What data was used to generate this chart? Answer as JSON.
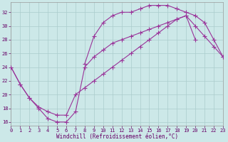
{
  "xlabel": "Windchill (Refroidissement éolien,°C)",
  "background_color": "#cce8e8",
  "grid_color": "#aacccc",
  "line_color": "#993399",
  "tick_color": "#660066",
  "xlim": [
    0,
    23
  ],
  "ylim": [
    15.5,
    33.5
  ],
  "yticks": [
    16,
    18,
    20,
    22,
    24,
    26,
    28,
    30,
    32
  ],
  "xticks": [
    0,
    1,
    2,
    3,
    4,
    5,
    6,
    7,
    8,
    9,
    10,
    11,
    12,
    13,
    14,
    15,
    16,
    17,
    18,
    19,
    20,
    21,
    22,
    23
  ],
  "series": [
    {
      "x": [
        8,
        9,
        10,
        11,
        12,
        13,
        14,
        15,
        16,
        17,
        18,
        19,
        20,
        21,
        22,
        23
      ],
      "y": [
        24.5,
        28.5,
        30.5,
        31.5,
        32.0,
        32.0,
        32.5,
        33.0,
        33.0,
        33.0,
        32.5,
        32.0,
        31.5,
        30.5,
        28.0,
        25.5
      ]
    },
    {
      "x": [
        0,
        1,
        2,
        3,
        4,
        5,
        6,
        7,
        8,
        9,
        10,
        11,
        12,
        13,
        14,
        15,
        16,
        17,
        18,
        19,
        20,
        21,
        22,
        23
      ],
      "y": [
        24.0,
        21.5,
        19.5,
        18.2,
        17.5,
        17.0,
        17.0,
        20.0,
        21.0,
        22.0,
        23.0,
        24.0,
        25.0,
        26.0,
        27.0,
        28.0,
        29.0,
        30.0,
        31.0,
        31.5,
        30.0,
        28.5,
        27.0,
        25.5
      ]
    },
    {
      "x": [
        0,
        1,
        2,
        3,
        4,
        5,
        6,
        7,
        8,
        9,
        10,
        11,
        12,
        13,
        14,
        15,
        16,
        17,
        18,
        19,
        20
      ],
      "y": [
        24.0,
        21.5,
        19.5,
        18.0,
        16.5,
        16.0,
        16.0,
        17.5,
        24.0,
        25.5,
        26.5,
        27.5,
        28.0,
        28.5,
        29.0,
        29.5,
        30.0,
        30.5,
        31.0,
        31.5,
        28.0
      ]
    }
  ]
}
